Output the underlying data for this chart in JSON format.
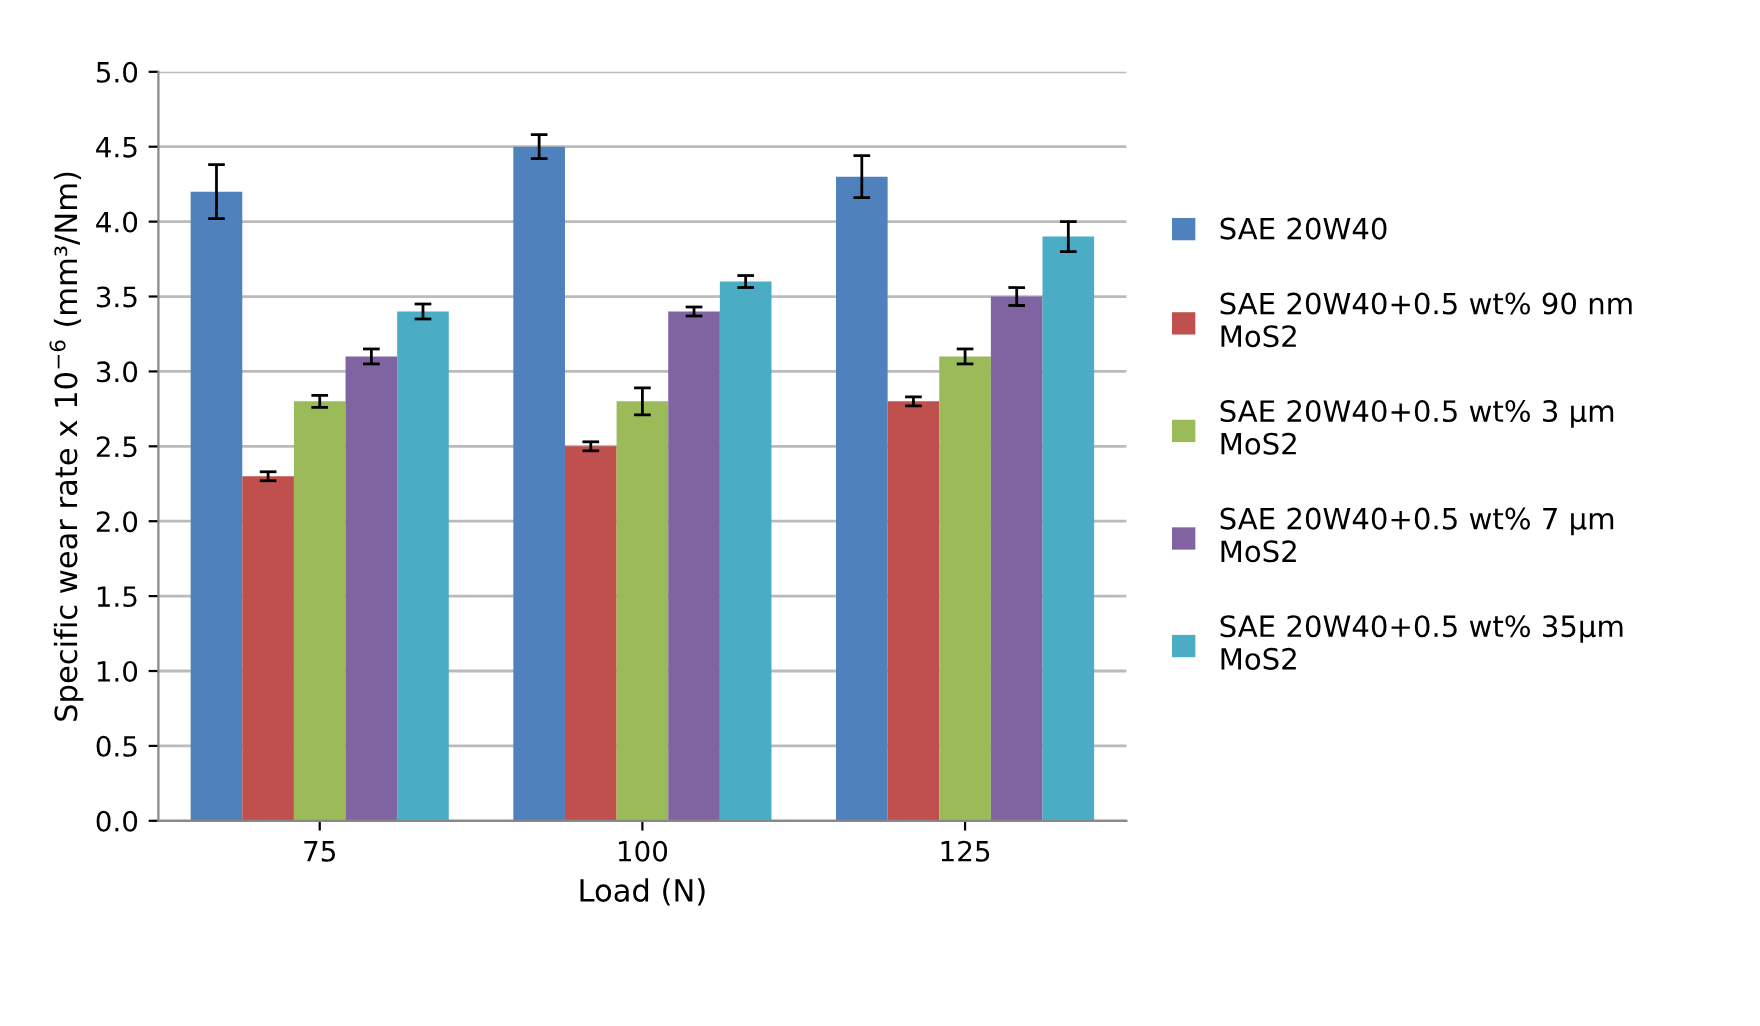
{
  "chart_data": {
    "type": "bar",
    "xlabel": "Load (N)",
    "ylabel": "Specific wear rate x 10$^{−6}$ (mm³/Nm)",
    "categories": [
      "75",
      "100",
      "125"
    ],
    "series": [
      {
        "name": "SAE 20W40",
        "color": "#4f81bd",
        "values": [
          4.2,
          4.5,
          4.3
        ],
        "errors": [
          0.18,
          0.08,
          0.14
        ]
      },
      {
        "name": "SAE 20W40+0.5 wt% 90 nm MoS2",
        "color": "#c0504d",
        "values": [
          2.3,
          2.5,
          2.8
        ],
        "errors": [
          0.03,
          0.03,
          0.03
        ]
      },
      {
        "name": "SAE 20W40+0.5 wt% 3 µm MoS2",
        "color": "#9bbb59",
        "values": [
          2.8,
          2.8,
          3.1
        ],
        "errors": [
          0.04,
          0.09,
          0.05
        ]
      },
      {
        "name": "SAE 20W40+0.5 wt% 7 µm MoS2",
        "color": "#8064a2",
        "values": [
          3.1,
          3.4,
          3.5
        ],
        "errors": [
          0.05,
          0.03,
          0.06
        ]
      },
      {
        "name": "SAE 20W40+0.5 wt% 35µm MoS2",
        "color": "#4bacc6",
        "values": [
          3.4,
          3.6,
          3.9
        ],
        "errors": [
          0.05,
          0.04,
          0.1
        ]
      }
    ],
    "ylim": [
      0,
      5
    ],
    "yticks": [
      {
        "value": 0,
        "label": "0.0"
      },
      {
        "value": 0.5,
        "label": "0.5"
      },
      {
        "value": 1,
        "label": "1.0"
      },
      {
        "value": 1.5,
        "label": "1.5"
      },
      {
        "value": 2,
        "label": "2.0"
      },
      {
        "value": 2.5,
        "label": "2.5"
      },
      {
        "value": 3,
        "label": "3.0"
      },
      {
        "value": 3.5,
        "label": "3.5"
      },
      {
        "value": 4,
        "label": "4.0"
      },
      {
        "value": 4.5,
        "label": "4.5"
      },
      {
        "value": 5,
        "label": "5.0"
      }
    ],
    "grid": "y",
    "legend": "right"
  }
}
